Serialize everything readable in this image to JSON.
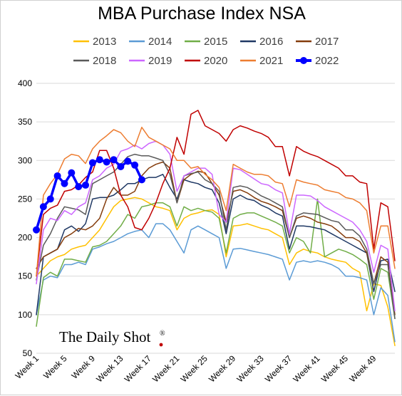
{
  "chart_data": {
    "type": "line",
    "title": "MBA Purchase Index NSA",
    "xlabel": "",
    "ylabel": "",
    "ylim": [
      50,
      400
    ],
    "yticks": [
      50,
      100,
      150,
      200,
      250,
      300,
      350,
      400
    ],
    "xlim": [
      1,
      52
    ],
    "xticks": [
      {
        "week": 1,
        "label": "Week 1"
      },
      {
        "week": 5,
        "label": "Week 5"
      },
      {
        "week": 9,
        "label": "Week 9"
      },
      {
        "week": 13,
        "label": "Week 13"
      },
      {
        "week": 17,
        "label": "Week 17"
      },
      {
        "week": 21,
        "label": "Week 21"
      },
      {
        "week": 25,
        "label": "Week 25"
      },
      {
        "week": 29,
        "label": "Week 29"
      },
      {
        "week": 33,
        "label": "Week 33"
      },
      {
        "week": 37,
        "label": "Week 37"
      },
      {
        "week": 41,
        "label": "Week 41"
      },
      {
        "week": 45,
        "label": "Week 45"
      },
      {
        "week": 49,
        "label": "Week 49"
      }
    ],
    "grid": "horizontal",
    "legend_position": "top",
    "series": [
      {
        "name": "2013",
        "color": "#FFC000",
        "width": 1.5,
        "markers": false,
        "values": [
          150,
          160,
          170,
          175,
          178,
          185,
          188,
          190,
          200,
          210,
          225,
          240,
          248,
          250,
          252,
          250,
          245,
          240,
          238,
          235,
          210,
          225,
          230,
          232,
          235,
          236,
          230,
          175,
          215,
          216,
          218,
          215,
          212,
          210,
          205,
          200,
          165,
          180,
          185,
          182,
          180,
          175,
          172,
          170,
          168,
          160,
          155,
          105,
          140,
          138,
          110,
          60
        ]
      },
      {
        "name": "2014",
        "color": "#5B9BD5",
        "width": 1.5,
        "markers": false,
        "values": [
          100,
          145,
          150,
          148,
          165,
          165,
          168,
          165,
          185,
          188,
          192,
          195,
          200,
          205,
          208,
          210,
          200,
          218,
          218,
          210,
          195,
          180,
          210,
          215,
          210,
          205,
          200,
          160,
          185,
          186,
          184,
          182,
          180,
          178,
          175,
          172,
          145,
          168,
          170,
          168,
          170,
          168,
          165,
          160,
          150,
          150,
          148,
          145,
          100,
          135,
          125,
          65
        ]
      },
      {
        "name": "2015",
        "color": "#70AD47",
        "width": 1.5,
        "markers": false,
        "values": [
          85,
          148,
          155,
          150,
          172,
          172,
          170,
          168,
          188,
          190,
          195,
          205,
          215,
          230,
          225,
          240,
          242,
          245,
          245,
          240,
          215,
          240,
          235,
          238,
          235,
          233,
          225,
          180,
          225,
          230,
          232,
          232,
          228,
          224,
          220,
          215,
          180,
          200,
          195,
          180,
          250,
          175,
          180,
          185,
          182,
          178,
          172,
          165,
          120,
          160,
          155,
          95
        ]
      },
      {
        "name": "2016",
        "color": "#1F3864",
        "width": 1.5,
        "markers": false,
        "values": [
          100,
          175,
          180,
          185,
          210,
          215,
          208,
          218,
          250,
          252,
          252,
          255,
          262,
          270,
          270,
          275,
          278,
          278,
          282,
          265,
          250,
          275,
          272,
          270,
          265,
          262,
          245,
          205,
          250,
          255,
          250,
          248,
          242,
          238,
          232,
          228,
          185,
          215,
          215,
          214,
          212,
          210,
          205,
          200,
          195,
          190,
          185,
          180,
          130,
          170,
          172,
          130
        ]
      },
      {
        "name": "2017",
        "color": "#843C0C",
        "width": 1.5,
        "markers": false,
        "values": [
          160,
          175,
          180,
          185,
          200,
          205,
          212,
          210,
          215,
          225,
          250,
          265,
          255,
          255,
          260,
          280,
          290,
          295,
          298,
          290,
          245,
          275,
          282,
          286,
          284,
          270,
          255,
          220,
          260,
          262,
          258,
          252,
          247,
          244,
          240,
          235,
          200,
          225,
          228,
          225,
          220,
          218,
          215,
          208,
          200,
          200,
          195,
          180,
          140,
          175,
          168,
          100
        ]
      },
      {
        "name": "2018",
        "color": "#595959",
        "width": 1.5,
        "markers": false,
        "values": [
          145,
          190,
          205,
          225,
          240,
          238,
          236,
          230,
          270,
          275,
          280,
          285,
          295,
          305,
          308,
          306,
          306,
          303,
          300,
          282,
          245,
          280,
          283,
          285,
          275,
          270,
          260,
          210,
          265,
          267,
          265,
          260,
          254,
          250,
          245,
          240,
          200,
          228,
          232,
          231,
          230,
          226,
          222,
          220,
          210,
          210,
          202,
          185,
          140,
          165,
          165,
          95
        ]
      },
      {
        "name": "2019",
        "color": "#CC66FF",
        "width": 1.5,
        "markers": false,
        "values": [
          140,
          210,
          225,
          222,
          235,
          230,
          240,
          245,
          275,
          280,
          290,
          295,
          312,
          315,
          320,
          315,
          322,
          325,
          320,
          308,
          260,
          280,
          285,
          290,
          290,
          282,
          230,
          220,
          290,
          288,
          282,
          276,
          270,
          268,
          262,
          258,
          205,
          255,
          255,
          254,
          248,
          240,
          235,
          230,
          225,
          220,
          210,
          195,
          155,
          190,
          185,
          105
        ]
      },
      {
        "name": "2020",
        "color": "#C00000",
        "width": 1.5,
        "markers": false,
        "values": [
          150,
          230,
          238,
          242,
          260,
          262,
          268,
          278,
          285,
          313,
          313,
          290,
          255,
          240,
          213,
          210,
          225,
          245,
          270,
          290,
          330,
          308,
          360,
          365,
          345,
          340,
          335,
          325,
          340,
          345,
          342,
          338,
          335,
          330,
          318,
          318,
          280,
          318,
          312,
          308,
          305,
          300,
          295,
          290,
          280,
          280,
          272,
          270,
          185,
          245,
          240,
          170
        ]
      },
      {
        "name": "2021",
        "color": "#ED7D31",
        "width": 1.5,
        "markers": false,
        "values": [
          150,
          255,
          270,
          282,
          302,
          308,
          306,
          296,
          315,
          325,
          332,
          340,
          336,
          325,
          318,
          343,
          330,
          325,
          320,
          315,
          300,
          300,
          290,
          292,
          282,
          275,
          265,
          235,
          295,
          290,
          285,
          282,
          282,
          280,
          272,
          270,
          240,
          275,
          272,
          270,
          268,
          262,
          260,
          258,
          252,
          250,
          245,
          235,
          180,
          215,
          215,
          160
        ]
      },
      {
        "name": "2022",
        "color": "#0000FF",
        "width": 3.5,
        "markers": true,
        "values": [
          210,
          240,
          250,
          280,
          270,
          284,
          266,
          268,
          297,
          301,
          298,
          301,
          292,
          299,
          294,
          275
        ]
      }
    ]
  },
  "watermark": {
    "text": "The Daily Shot",
    "mark": "®"
  }
}
